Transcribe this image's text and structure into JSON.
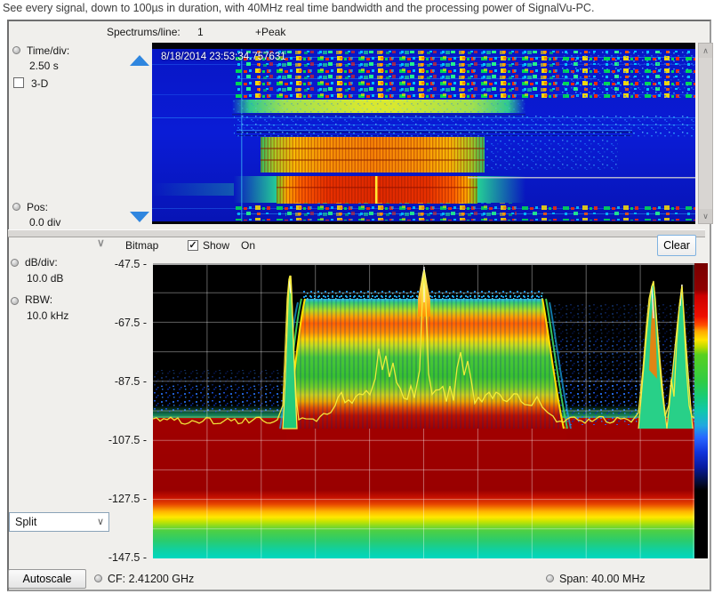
{
  "caption": "See every signal, down to 100µs in duration, with 40MHz real time bandwidth and the processing power of SignalVu-PC.",
  "icons": {
    "scroll_up": "∧",
    "scroll_down": "∨",
    "dropdown_chevron": "∨",
    "collapse_chevron": "∨",
    "check": "✓"
  },
  "spectrogram_panel": {
    "spectrums_per_line_label": "Spectrums/line:",
    "spectrums_per_line_value": "1",
    "detector_label": "+Peak",
    "time_per_div_label": "Time/div:",
    "time_per_div_value": "2.50 s",
    "three_d_label": "3-D",
    "three_d_checked": false,
    "timestamp": "8/18/2014 23:53:34.757631",
    "pos_label": "Pos:",
    "pos_value": "0.0 div"
  },
  "spectrum_panel": {
    "view_label": "Bitmap",
    "show_label": "Show",
    "show_checked": true,
    "on_label": "On",
    "clear_button": "Clear",
    "db_per_div_label": "dB/div:",
    "db_per_div_value": "10.0 dB",
    "rbw_label": "RBW:",
    "rbw_value": "10.0 kHz",
    "y_axis_labels": [
      "-47.5",
      "-67.5",
      "-87.5",
      "-107.5",
      "-127.5",
      "-147.5"
    ],
    "y_axis_tick": "-",
    "split_dropdown_value": "Split",
    "autoscale_button": "Autoscale",
    "cf_label": "CF:",
    "cf_value": "2.41200 GHz",
    "span_label": "Span:",
    "span_value": "40.00 MHz"
  },
  "colors": {
    "accent_blue_marker": "#2f86df",
    "spectrogram_background": "#0a18c8",
    "plot_background": "#000000",
    "trace_yellow": "#f5ee3c"
  }
}
